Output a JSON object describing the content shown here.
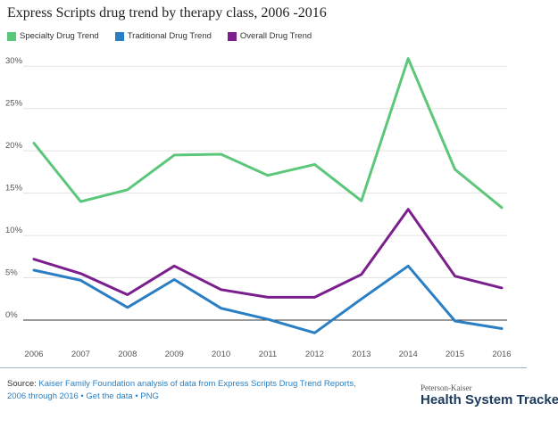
{
  "title": "Express Scripts drug trend by therapy class, 2006 -2016",
  "chart_data": {
    "type": "line",
    "title": "Express Scripts drug trend by therapy class, 2006 -2016",
    "x": [
      "2006",
      "2007",
      "2008",
      "2009",
      "2010",
      "2011",
      "2012",
      "2013",
      "2014",
      "2015",
      "2016"
    ],
    "ylim": [
      -2,
      31.5
    ],
    "yticks": [
      0,
      5,
      10,
      15,
      20,
      25,
      30
    ],
    "ytick_labels": [
      "0%",
      "5%",
      "10%",
      "15%",
      "20%",
      "25%",
      "30%"
    ],
    "grid": true,
    "legend_position": "top-left",
    "series": [
      {
        "name": "Specialty Drug Trend",
        "color": "#5cc77a",
        "values": [
          20.9,
          14.0,
          15.4,
          19.5,
          19.6,
          17.1,
          18.4,
          14.1,
          30.9,
          17.8,
          13.3
        ]
      },
      {
        "name": "Traditional Drug Trend",
        "color": "#2a7fc4",
        "values": [
          5.9,
          4.7,
          1.5,
          4.8,
          1.4,
          0.1,
          -1.5,
          2.5,
          6.4,
          -0.1,
          -1.0
        ]
      },
      {
        "name": "Overall Drug Trend",
        "color": "#7b1f8e",
        "values": [
          7.2,
          5.5,
          3.0,
          6.4,
          3.6,
          2.7,
          2.7,
          5.4,
          13.1,
          5.2,
          3.8
        ]
      }
    ]
  },
  "footer": {
    "source_prefix": "Source: ",
    "source_text": "Kaiser Family Foundation analysis of data from Express Scripts Drug Trend Reports, 2006 through 2016",
    "get_data": "Get the data",
    "png": "PNG",
    "separator": "•",
    "brand_small": "Peterson-Kaiser",
    "brand_big": "Health System Tracker"
  }
}
